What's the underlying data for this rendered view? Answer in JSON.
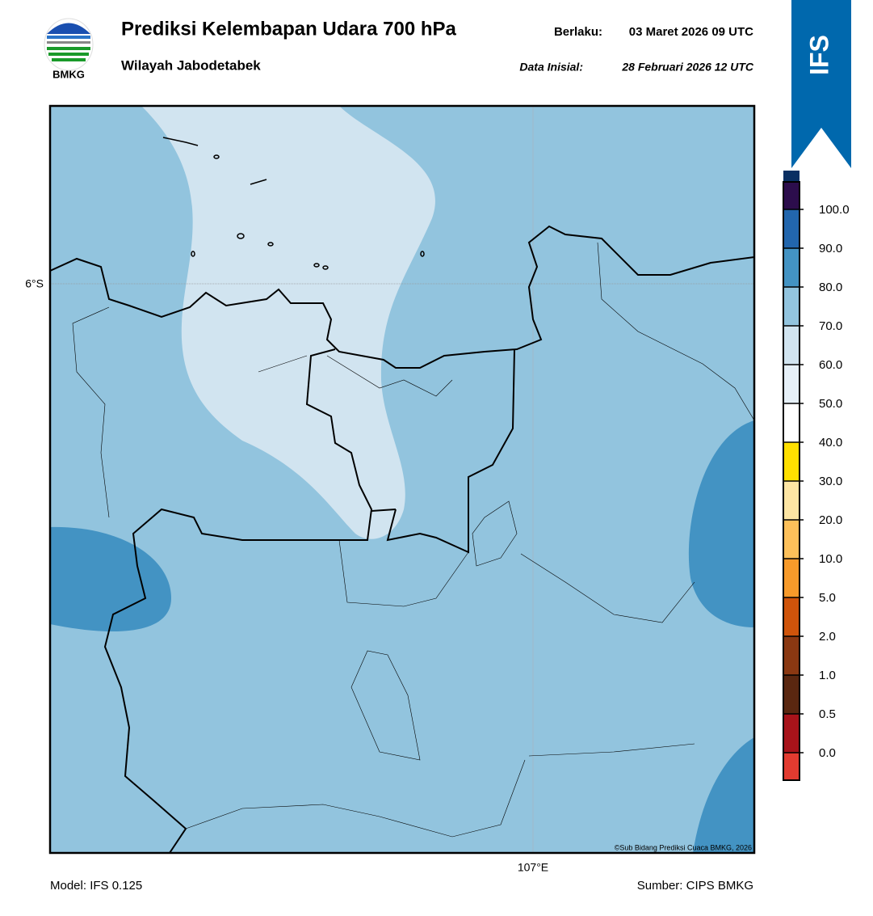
{
  "header": {
    "logo_text": "BMKG",
    "title": "Prediksi Kelembapan Udara 700 hPa",
    "subtitle": "Wilayah Jabodetabek",
    "valid_label": "Berlaku:",
    "valid_time": "03 Maret 2026 09 UTC",
    "init_label": "Data Inisial:",
    "init_time": "28 Februari 2026 12 UTC",
    "badge": "IFS"
  },
  "map": {
    "lat_label": "6°S",
    "lon_label": "107°E",
    "credit": "©Sub Bidang Prediksi Cuaca BMKG, 2026"
  },
  "colorbar": {
    "ticks": [
      {
        "value": 0,
        "label": "0.0"
      },
      {
        "value": 0.5,
        "label": "0.5"
      },
      {
        "value": 1,
        "label": "1.0"
      },
      {
        "value": 2,
        "label": "2.0"
      },
      {
        "value": 5,
        "label": "5.0"
      },
      {
        "value": 10,
        "label": "10.0"
      },
      {
        "value": 20,
        "label": "20.0"
      },
      {
        "value": 30,
        "label": "30.0"
      },
      {
        "value": 40,
        "label": "40.0"
      },
      {
        "value": 50,
        "label": "50.0"
      },
      {
        "value": 60,
        "label": "60.0"
      },
      {
        "value": 70,
        "label": "70.0"
      },
      {
        "value": 80,
        "label": "80.0"
      },
      {
        "value": 90,
        "label": "90.0"
      },
      {
        "value": 100,
        "label": "100.0"
      }
    ],
    "colors": [
      "#e23b30",
      "#a8131a",
      "#5a2710",
      "#8a3812",
      "#cf540b",
      "#f79a2a",
      "#fdc05a",
      "#fde5a3",
      "#ffe000",
      "#ffffff",
      "#e6f0f8",
      "#d1e4f0",
      "#92c4de",
      "#4393c3",
      "#2266ad",
      "#0a2f62",
      "#2c0d4c"
    ]
  },
  "footer": {
    "model": "Model: IFS 0.125",
    "source": "Sumber: CIPS BMKG"
  }
}
